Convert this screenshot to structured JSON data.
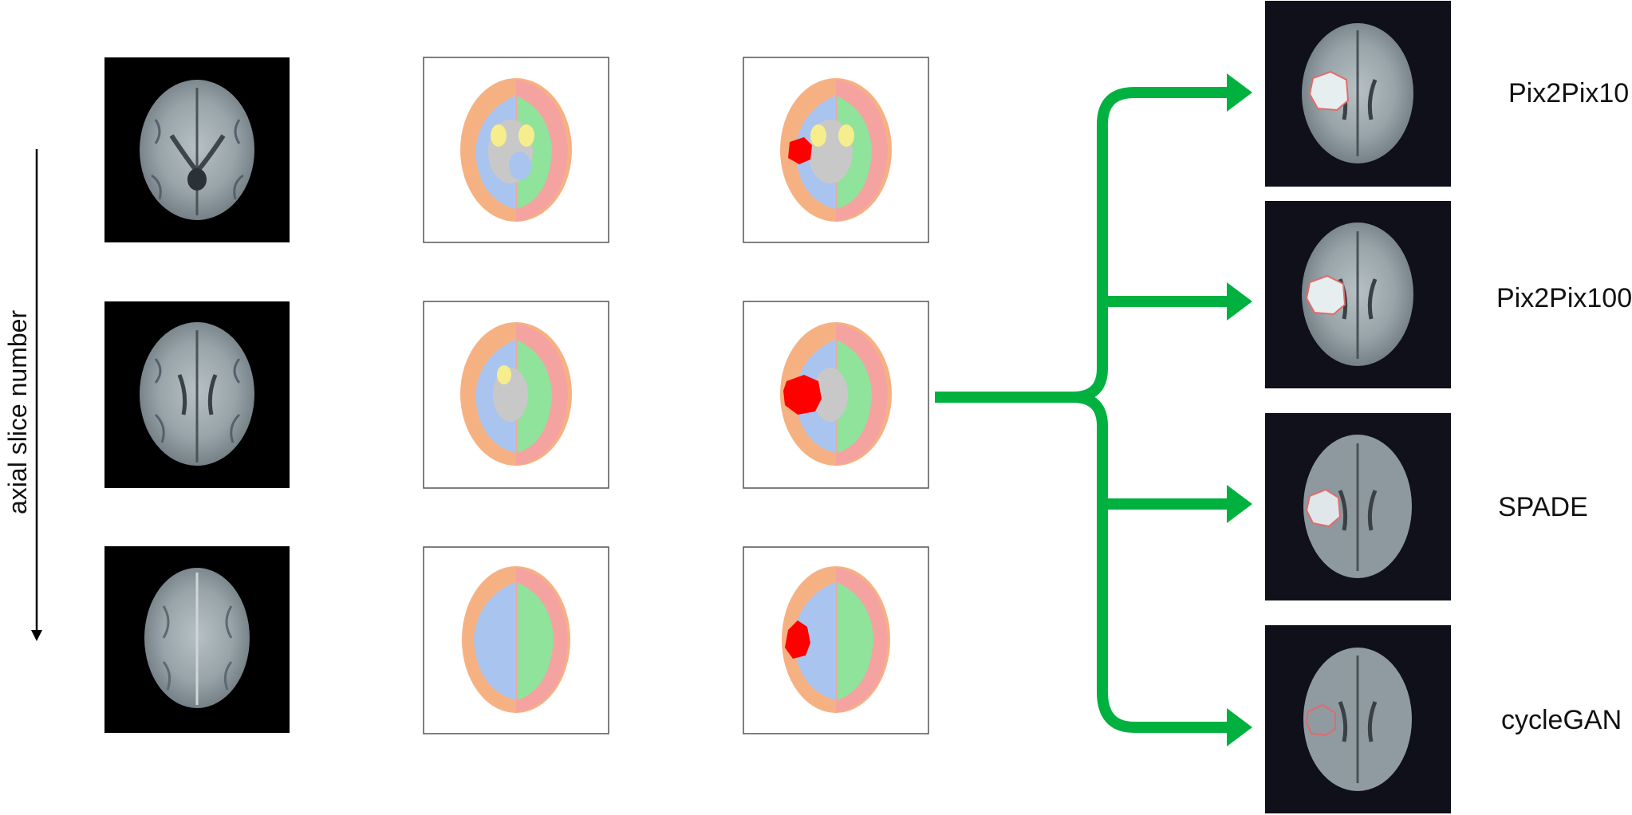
{
  "axis": {
    "label": "axial slice number"
  },
  "methods": [
    {
      "id": "pix2pix10",
      "label": "Pix2Pix10"
    },
    {
      "id": "pix2pix100",
      "label": "Pix2Pix100"
    },
    {
      "id": "spade",
      "label": "SPADE"
    },
    {
      "id": "cyclegan",
      "label": "cycleGAN"
    }
  ],
  "colors": {
    "arrow": "#00b140",
    "tumor": "#ff0000",
    "segmentation_orange": "#f6b183",
    "segmentation_blue": "#a9c4ef",
    "segmentation_green": "#8fe39a",
    "segmentation_pink": "#f4a3a0",
    "segmentation_gray": "#c8c8c8",
    "segmentation_yellow": "#f6ee8c",
    "mri_background_black": "#000000",
    "mri_background_dark": "#0f1019",
    "mri_tissue": "#9aa6ab"
  }
}
